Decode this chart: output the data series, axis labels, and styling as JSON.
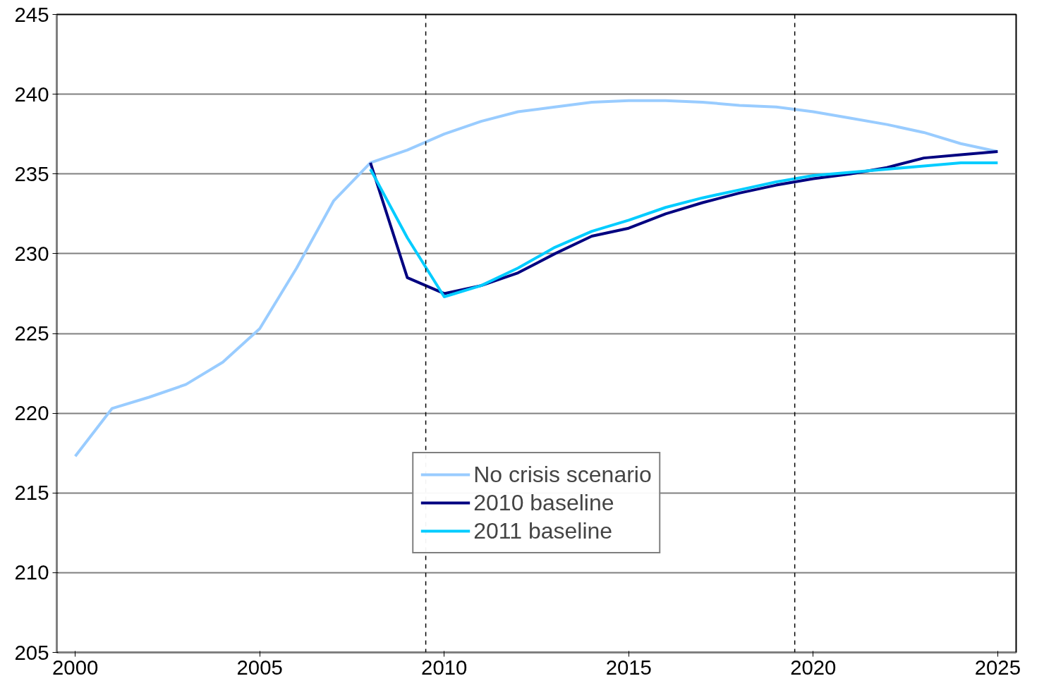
{
  "chart_data": {
    "type": "line",
    "x": [
      2000,
      2001,
      2002,
      2003,
      2004,
      2005,
      2006,
      2007,
      2008,
      2009,
      2010,
      2011,
      2012,
      2013,
      2014,
      2015,
      2016,
      2017,
      2018,
      2019,
      2020,
      2021,
      2022,
      2023,
      2024,
      2025
    ],
    "series": [
      {
        "name": "No crisis scenario",
        "color": "#99ccff",
        "values": [
          217.3,
          220.3,
          221.0,
          221.8,
          223.2,
          225.3,
          229.1,
          233.3,
          235.7,
          236.5,
          237.5,
          238.3,
          238.9,
          239.2,
          239.5,
          239.6,
          239.6,
          239.5,
          239.3,
          239.2,
          238.9,
          238.5,
          238.1,
          237.6,
          236.9,
          236.4
        ]
      },
      {
        "name": "2010 baseline",
        "color": "#000080",
        "values": [
          null,
          null,
          null,
          null,
          null,
          null,
          null,
          null,
          235.7,
          228.5,
          227.5,
          228.0,
          228.8,
          230.0,
          231.1,
          231.6,
          232.5,
          233.2,
          233.8,
          234.3,
          234.7,
          235.0,
          235.4,
          236.0,
          236.2,
          236.4
        ]
      },
      {
        "name": "2011 baseline",
        "color": "#00ccff",
        "values": [
          null,
          null,
          null,
          null,
          null,
          null,
          null,
          null,
          235.3,
          231.0,
          227.3,
          228.0,
          229.1,
          230.4,
          231.4,
          232.1,
          232.9,
          233.5,
          234.0,
          234.5,
          234.9,
          235.1,
          235.3,
          235.5,
          235.7,
          235.7
        ]
      }
    ],
    "xlim": [
      1999.5,
      2025.5
    ],
    "xticks": [
      2000,
      2005,
      2010,
      2015,
      2020,
      2025
    ],
    "ylim": [
      205,
      245
    ],
    "yticks": [
      205,
      210,
      215,
      220,
      225,
      230,
      235,
      240,
      245
    ],
    "ref_lines": [
      {
        "axis": "x",
        "value": 2009.5,
        "line_style": "dashed",
        "color": "#000000"
      },
      {
        "axis": "x",
        "value": 2019.5,
        "line_style": "dashed",
        "color": "#000000"
      }
    ],
    "grid": "y",
    "legend": "bottom",
    "line_style": "solid",
    "marker": "none"
  }
}
